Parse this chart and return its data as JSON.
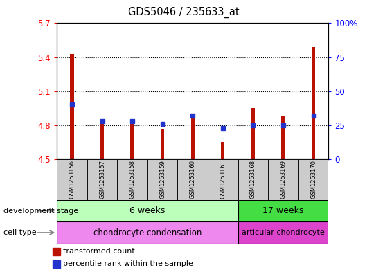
{
  "title": "GDS5046 / 235633_at",
  "samples": [
    "GSM1253156",
    "GSM1253157",
    "GSM1253158",
    "GSM1253159",
    "GSM1253160",
    "GSM1253161",
    "GSM1253168",
    "GSM1253169",
    "GSM1253170"
  ],
  "red_values": [
    5.43,
    4.82,
    4.84,
    4.77,
    4.88,
    4.65,
    4.95,
    4.88,
    5.49
  ],
  "blue_values_pct": [
    40,
    28,
    28,
    26,
    32,
    23,
    25,
    25,
    32
  ],
  "ylim_left": [
    4.5,
    5.7
  ],
  "ylim_right": [
    0,
    100
  ],
  "yticks_left": [
    4.5,
    4.8,
    5.1,
    5.4,
    5.7
  ],
  "yticks_right": [
    0,
    25,
    50,
    75,
    100
  ],
  "ytick_labels_left": [
    "4.5",
    "4.8",
    "5.1",
    "5.4",
    "5.7"
  ],
  "ytick_labels_right": [
    "0",
    "25",
    "50",
    "75",
    "100%"
  ],
  "bar_bottom": 4.5,
  "bar_width": 0.12,
  "red_color": "#bb1100",
  "blue_color": "#2233cc",
  "group1_label": "6 weeks",
  "group2_label": "17 weeks",
  "group1_samples": 6,
  "group2_samples": 3,
  "cell_type1_label": "chondrocyte condensation",
  "cell_type2_label": "articular chondrocyte",
  "dev_stage_label": "development stage",
  "cell_type_label": "cell type",
  "legend1": "transformed count",
  "legend2": "percentile rank within the sample",
  "group1_color": "#bbffbb",
  "group2_color": "#44dd44",
  "cell1_color": "#ee88ee",
  "cell2_color": "#dd44cc",
  "sample_bg_color": "#cccccc",
  "fig_width": 5.3,
  "fig_height": 3.93,
  "dpi": 100
}
